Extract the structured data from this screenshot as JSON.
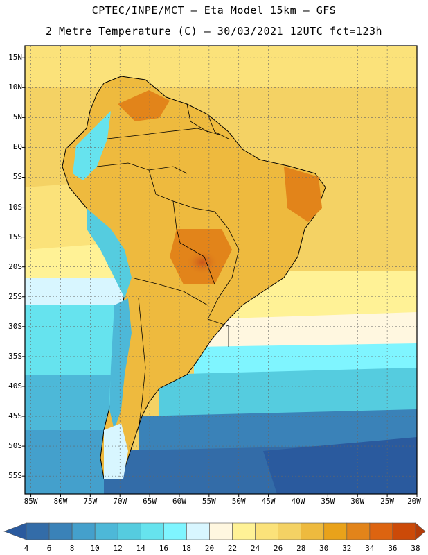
{
  "header": {
    "line1": "CPTEC/INPE/MCT –  Eta Model 15km – GFS",
    "line2": "2 Metre Temperature (C) – 30/03/2021 12UTC fct=123h"
  },
  "map": {
    "lat_labels": [
      "15N",
      "10N",
      "5N",
      "EQ",
      "5S",
      "10S",
      "15S",
      "20S",
      "25S",
      "30S",
      "35S",
      "40S",
      "45S",
      "50S",
      "55S"
    ],
    "lon_labels": [
      "85W",
      "80W",
      "75W",
      "70W",
      "65W",
      "60W",
      "55W",
      "50W",
      "45W",
      "40W",
      "35W",
      "30W",
      "25W",
      "20W"
    ],
    "lon_range_deg": [
      -86,
      -20
    ],
    "lat_range_deg": [
      -58,
      17
    ]
  },
  "colorbar": {
    "labels": [
      "4",
      "6",
      "8",
      "10",
      "12",
      "14",
      "16",
      "18",
      "20",
      "22",
      "24",
      "26",
      "28",
      "30",
      "32",
      "34",
      "36",
      "38"
    ],
    "colors": [
      "#2a5a9e",
      "#336ca8",
      "#3a82b8",
      "#44a0cc",
      "#4db8d8",
      "#55ccdf",
      "#66e3ee",
      "#7ff5ff",
      "#d8f6ff",
      "#fff7e0",
      "#fff296",
      "#fbe27a",
      "#f4d264",
      "#eeba3e",
      "#e9a21a",
      "#e2841a",
      "#dd6410",
      "#cc4a08",
      "#b43c08"
    ]
  }
}
